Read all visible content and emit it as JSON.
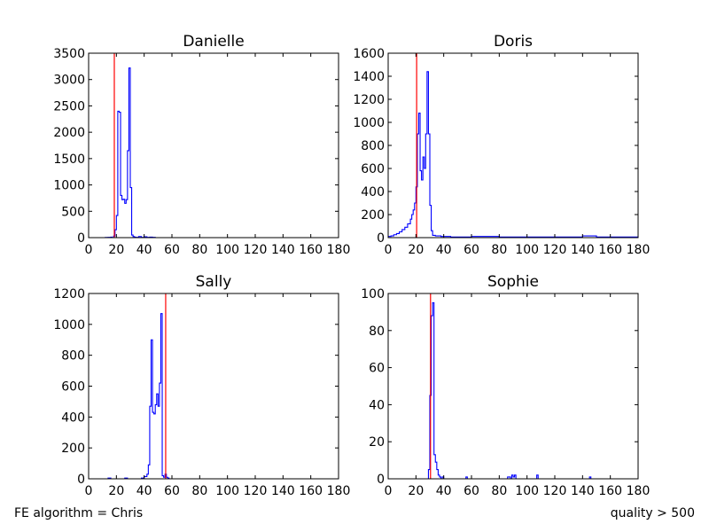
{
  "footer": {
    "left": "FE algorithm = Chris",
    "right": "quality > 500"
  },
  "colors": {
    "histogram": "#0000ff",
    "marker": "#ff0000",
    "axes": "#000000"
  },
  "chart_data": [
    {
      "type": "line",
      "title": "Danielle",
      "xlim": [
        0,
        180
      ],
      "ylim": [
        0,
        3500
      ],
      "xticks": [
        0,
        20,
        40,
        60,
        80,
        100,
        120,
        140,
        160,
        180
      ],
      "yticks": [
        0,
        500,
        1000,
        1500,
        2000,
        2500,
        3000,
        3500
      ],
      "marker_x": 18.5,
      "series": [
        {
          "x": [
            0,
            10,
            12,
            14,
            16,
            17,
            18,
            19,
            20,
            21,
            22,
            23,
            24,
            25,
            26,
            27,
            28,
            29,
            30,
            31,
            32,
            33,
            34,
            36,
            38,
            40,
            42,
            44,
            46,
            48,
            50,
            180
          ],
          "y": [
            0,
            0,
            3,
            5,
            10,
            0,
            30,
            150,
            420,
            2400,
            2380,
            800,
            720,
            730,
            650,
            720,
            1650,
            3220,
            950,
            50,
            20,
            10,
            5,
            20,
            5,
            15,
            5,
            10,
            5,
            0,
            0,
            0
          ]
        }
      ]
    },
    {
      "type": "line",
      "title": "Doris",
      "xlim": [
        0,
        180
      ],
      "ylim": [
        0,
        1600
      ],
      "xticks": [
        0,
        20,
        40,
        60,
        80,
        100,
        120,
        140,
        160,
        180
      ],
      "yticks": [
        0,
        200,
        400,
        600,
        800,
        1000,
        1200,
        1400,
        1600
      ],
      "marker_x": 20.5,
      "series": [
        {
          "x": [
            0,
            2,
            4,
            6,
            8,
            10,
            12,
            14,
            16,
            17,
            18,
            19,
            20,
            21,
            22,
            23,
            24,
            25,
            26,
            27,
            28,
            29,
            30,
            31,
            32,
            34,
            38,
            45,
            60,
            80,
            100,
            120,
            140,
            150,
            170,
            180
          ],
          "y": [
            10,
            15,
            25,
            35,
            50,
            70,
            90,
            120,
            160,
            200,
            240,
            300,
            440,
            900,
            1080,
            580,
            500,
            700,
            600,
            900,
            1440,
            900,
            280,
            60,
            20,
            15,
            10,
            5,
            10,
            5,
            5,
            5,
            15,
            5,
            5,
            0
          ]
        }
      ]
    },
    {
      "type": "line",
      "title": "Sally",
      "xlim": [
        0,
        180
      ],
      "ylim": [
        0,
        1200
      ],
      "xticks": [
        0,
        20,
        40,
        60,
        80,
        100,
        120,
        140,
        160,
        180
      ],
      "yticks": [
        0,
        200,
        400,
        600,
        800,
        1000,
        1200
      ],
      "marker_x": 55.5,
      "series": [
        {
          "x": [
            0,
            14,
            16,
            26,
            28,
            38,
            40,
            42,
            43,
            44,
            45,
            46,
            47,
            48,
            49,
            50,
            51,
            52,
            53,
            54,
            55,
            56,
            57,
            58,
            60,
            180
          ],
          "y": [
            0,
            5,
            0,
            5,
            0,
            5,
            15,
            30,
            90,
            470,
            900,
            430,
            420,
            480,
            550,
            470,
            620,
            1070,
            20,
            10,
            30,
            10,
            5,
            0,
            0,
            0
          ]
        }
      ]
    },
    {
      "type": "line",
      "title": "Sophie",
      "xlim": [
        0,
        180
      ],
      "ylim": [
        0,
        100
      ],
      "xticks": [
        0,
        20,
        40,
        60,
        80,
        100,
        120,
        140,
        160,
        180
      ],
      "yticks": [
        0,
        20,
        40,
        60,
        80,
        100
      ],
      "marker_x": 30.5,
      "series": [
        {
          "x": [
            0,
            28,
            29,
            30,
            31,
            32,
            33,
            34,
            35,
            36,
            37,
            38,
            39,
            40,
            55,
            56,
            57,
            85,
            86,
            88,
            89,
            90,
            91,
            92,
            100,
            106,
            107,
            108,
            144,
            145,
            146,
            180
          ],
          "y": [
            0,
            0,
            5,
            45,
            88,
            95,
            13,
            9,
            5,
            2,
            1,
            0,
            1,
            0,
            0,
            1,
            0,
            0,
            1,
            0,
            2,
            1,
            2,
            0,
            0,
            0,
            2,
            0,
            0,
            1,
            0,
            0
          ]
        }
      ]
    }
  ]
}
